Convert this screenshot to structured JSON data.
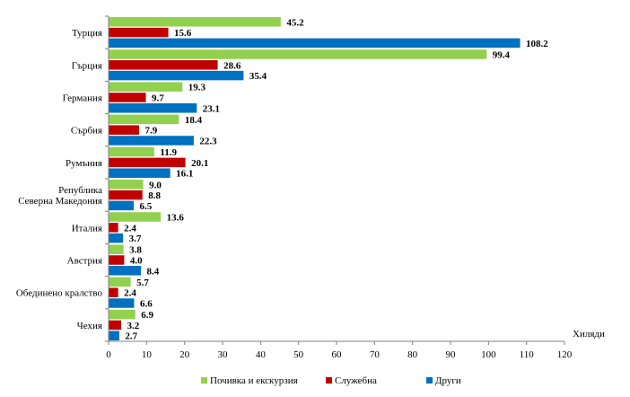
{
  "chart_data": {
    "type": "bar",
    "orientation": "horizontal",
    "title": "",
    "xlabel": "Хиляди",
    "ylabel": "",
    "xlim": [
      0,
      120
    ],
    "xticks": [
      0,
      10,
      20,
      30,
      40,
      50,
      60,
      70,
      80,
      90,
      100,
      110,
      120
    ],
    "grid": false,
    "legend_position": "bottom",
    "categories": [
      [
        "Турция"
      ],
      [
        "Гърция"
      ],
      [
        "Германия"
      ],
      [
        "Сърбия"
      ],
      [
        "Румъния"
      ],
      [
        "Република",
        "Северна Македония"
      ],
      [
        "Италия"
      ],
      [
        "Австрия"
      ],
      [
        "Обединено кралство"
      ],
      [
        "Чехия"
      ]
    ],
    "series": [
      {
        "name": "Почивка и екскурзия",
        "color": "#92d050",
        "values": [
          45.2,
          99.4,
          19.3,
          18.4,
          11.9,
          9.0,
          13.6,
          3.8,
          5.7,
          6.9
        ],
        "labels": [
          "45.2",
          "99.4",
          "19.3",
          "18.4",
          "11.9",
          "9.0",
          "13.6",
          "3.8",
          "5.7",
          "6.9"
        ]
      },
      {
        "name": "Служебна",
        "color": "#c00000",
        "values": [
          15.6,
          28.6,
          9.7,
          7.9,
          20.1,
          8.8,
          2.4,
          4.0,
          2.4,
          3.2
        ],
        "labels": [
          "15.6",
          "28.6",
          "9.7",
          "7.9",
          "20.1",
          "8.8",
          "2.4",
          "4.0",
          "2.4",
          "3.2"
        ]
      },
      {
        "name": "Други",
        "color": "#0070c0",
        "values": [
          108.2,
          35.4,
          23.1,
          22.3,
          16.1,
          6.5,
          3.7,
          8.4,
          6.6,
          2.7
        ],
        "labels": [
          "108.2",
          "35.4",
          "23.1",
          "22.3",
          "16.1",
          "6.5",
          "3.7",
          "8.4",
          "6.6",
          "2.7"
        ]
      }
    ]
  }
}
